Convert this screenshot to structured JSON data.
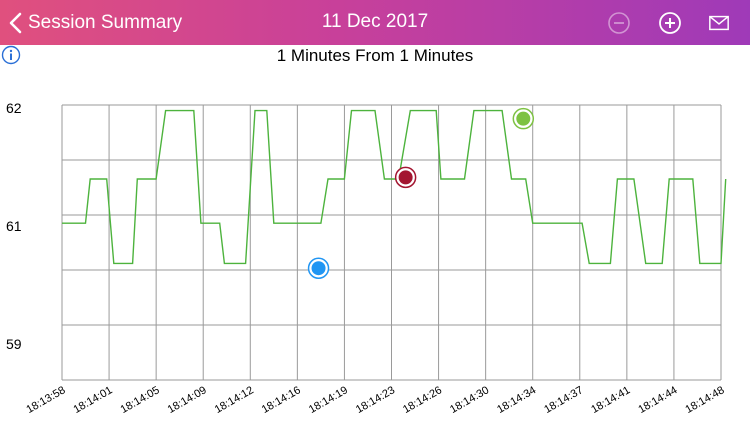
{
  "header": {
    "back_label": "Session Summary",
    "title": "11 Dec 2017",
    "background": [
      "#e0507e",
      "#9f3ab8"
    ],
    "icons": [
      "chevron-left-icon",
      "zoom-out-icon",
      "zoom-in-icon",
      "mail-icon"
    ]
  },
  "subtitle": "1 Minutes  From 1 Minutes",
  "chart_data": {
    "type": "line",
    "title": "",
    "xlabel": "",
    "ylabel": "",
    "ylim": [
      58.65,
      62.07
    ],
    "yticks": [
      59,
      61,
      62
    ],
    "ytick_labels": [
      "59",
      "61",
      "62"
    ],
    "grid": true,
    "line_color": "#4db33d",
    "x_tick_labels": [
      "18:13:58",
      "18:14:01",
      "18:14:05",
      "18:14:09",
      "18:14:12",
      "18:14:16",
      "18:14:19",
      "18:14:23",
      "18:14:26",
      "18:14:30",
      "18:14:34",
      "18:14:37",
      "18:14:41",
      "18:14:44",
      "18:14:48"
    ],
    "series": [
      {
        "x": [
          0,
          0.5,
          0.6,
          0.95,
          1.1,
          1.5,
          1.6,
          2.0,
          2.2,
          2.8,
          2.95,
          3.35,
          3.45,
          3.9,
          4.1,
          4.35,
          4.5,
          5.5,
          5.65,
          6.0,
          6.15,
          6.65,
          6.85,
          7.15,
          7.4,
          7.95,
          8.05,
          8.55,
          8.75,
          9.35,
          9.55,
          9.85,
          10.0,
          11.05,
          11.2,
          11.65,
          11.8,
          12.15,
          12.4,
          12.75,
          12.9,
          13.4,
          13.55,
          14.0,
          14.1
        ],
        "y": [
          60.6,
          60.6,
          61.15,
          61.15,
          60.1,
          60.1,
          61.15,
          61.15,
          62,
          62,
          60.6,
          60.6,
          60.1,
          60.1,
          62,
          62,
          60.6,
          60.6,
          61.15,
          61.15,
          62,
          62,
          61.15,
          61.15,
          62,
          62,
          61.15,
          61.15,
          62,
          62,
          61.15,
          61.15,
          60.6,
          60.6,
          60.1,
          60.1,
          61.15,
          61.15,
          60.1,
          60.1,
          61.15,
          61.15,
          60.1,
          60.1,
          61.15
        ]
      }
    ],
    "markers": [
      {
        "x": 5.45,
        "y": 60.04,
        "color": "#2196f3"
      },
      {
        "x": 7.3,
        "y": 61.17,
        "color": "#a31530"
      },
      {
        "x": 9.8,
        "y": 61.9,
        "color": "#7dc242"
      }
    ]
  }
}
